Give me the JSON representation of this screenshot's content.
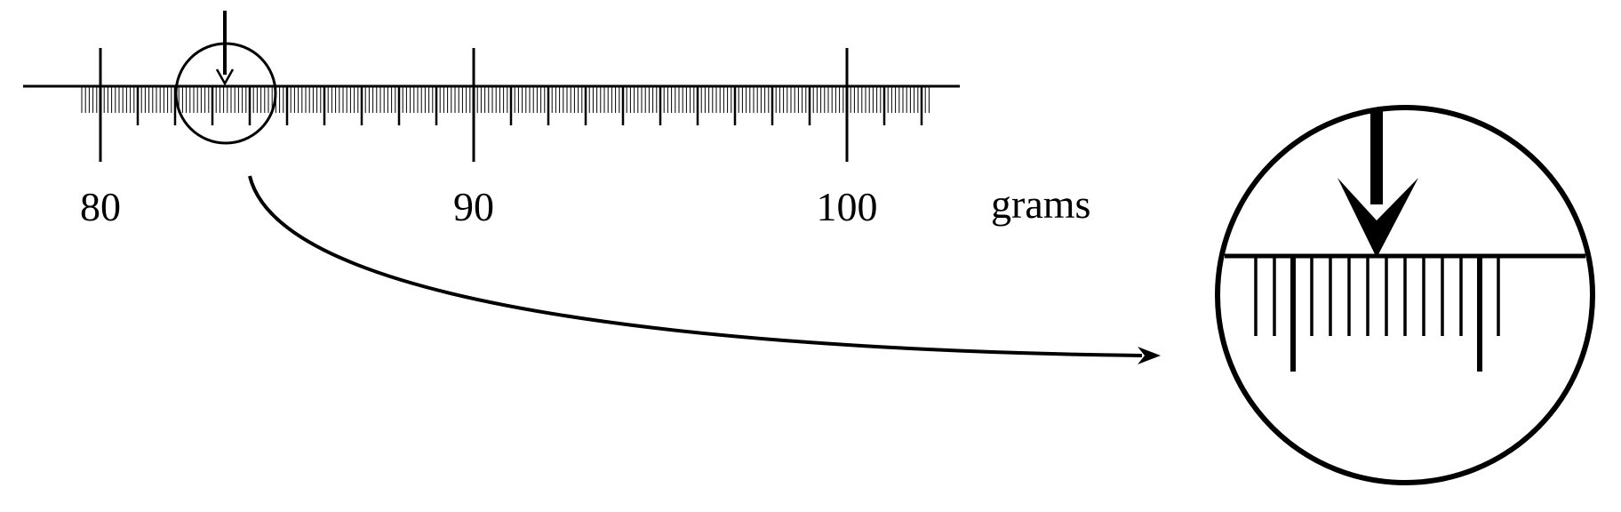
{
  "scale": {
    "min": 78,
    "max": 103,
    "minor_step": 0.1,
    "major_labels": [
      "80",
      "90",
      "100"
    ],
    "unit": "grams",
    "pointer_value": 83.4
  },
  "magnifier": {
    "range_start": 82.8,
    "range_end": 83.8,
    "pointer_value": 83.4
  },
  "colors": {
    "ink": "#000000",
    "background": "#ffffff"
  }
}
